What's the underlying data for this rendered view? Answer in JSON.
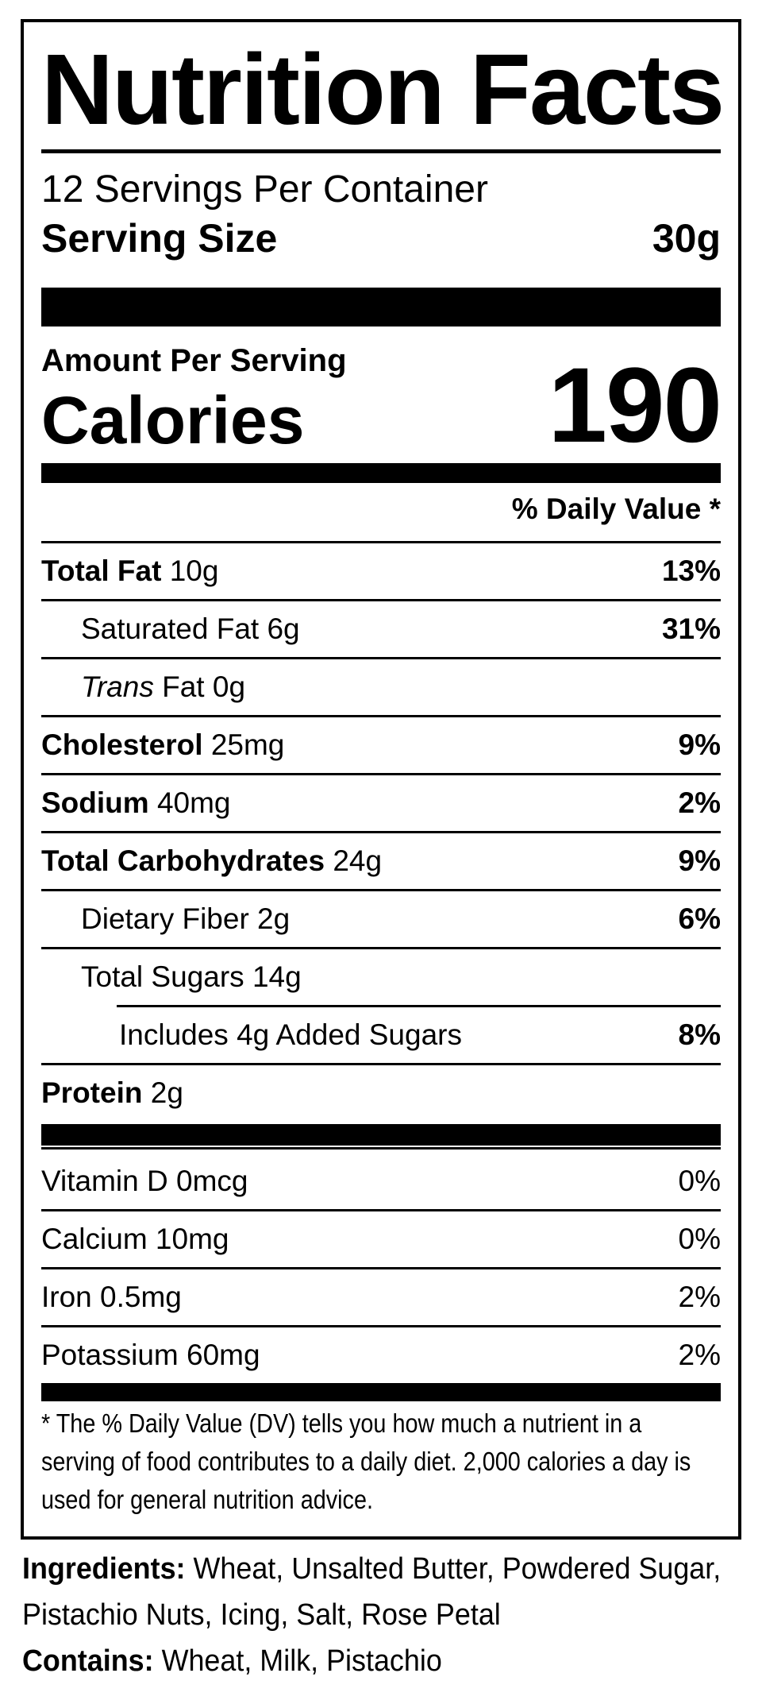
{
  "colors": {
    "text": "#000000",
    "background": "#ffffff"
  },
  "label": {
    "title": "Nutrition Facts",
    "servings_per_container": "12 Servings Per Container",
    "serving_size_label": "Serving Size",
    "serving_size_value": "30g",
    "amount_per_serving": "Amount Per Serving",
    "calories_label": "Calories",
    "calories_value": "190",
    "daily_value_header": "% Daily Value *",
    "rows": [
      {
        "name": "Total Fat",
        "amount": "10g",
        "pct": "13%",
        "indent": 0,
        "bold_name": true,
        "bold_pct": true,
        "rule_indent": 0
      },
      {
        "name": "Saturated Fat",
        "amount": "6g",
        "pct": "31%",
        "indent": 1,
        "bold_name": false,
        "bold_pct": true,
        "rule_indent": 0
      },
      {
        "italic_word": "Trans",
        "name": "Fat",
        "amount": "0g",
        "pct": "",
        "indent": 1,
        "bold_name": false,
        "bold_pct": false,
        "rule_indent": 0
      },
      {
        "name": "Cholesterol",
        "amount": "25mg",
        "pct": "9%",
        "indent": 0,
        "bold_name": true,
        "bold_pct": true,
        "rule_indent": 0
      },
      {
        "name": "Sodium",
        "amount": "40mg",
        "pct": "2%",
        "indent": 0,
        "bold_name": true,
        "bold_pct": true,
        "rule_indent": 0
      },
      {
        "name": "Total Carbohydrates",
        "amount": "24g",
        "pct": "9%",
        "indent": 0,
        "bold_name": true,
        "bold_pct": true,
        "rule_indent": 0
      },
      {
        "name": "Dietary Fiber",
        "amount": "2g",
        "pct": "6%",
        "indent": 1,
        "bold_name": false,
        "bold_pct": true,
        "rule_indent": 0
      },
      {
        "name": "Total Sugars",
        "amount": "14g",
        "pct": "",
        "indent": 1,
        "bold_name": false,
        "bold_pct": false,
        "rule_indent": 0
      },
      {
        "name": "Includes 4g Added Sugars",
        "amount": "",
        "pct": "8%",
        "indent": 2,
        "bold_name": false,
        "bold_pct": true,
        "rule_indent": 95
      },
      {
        "name": "Protein",
        "amount": "2g",
        "pct": "",
        "indent": 0,
        "bold_name": true,
        "bold_pct": false,
        "rule_indent": 0
      }
    ],
    "vitamins": [
      {
        "name": "Vitamin D",
        "amount": "0mcg",
        "pct": "0%"
      },
      {
        "name": "Calcium",
        "amount": "10mg",
        "pct": "0%"
      },
      {
        "name": "Iron",
        "amount": "0.5mg",
        "pct": "2%"
      },
      {
        "name": "Potassium",
        "amount": "60mg",
        "pct": "2%"
      }
    ],
    "footnote": "* The % Daily Value (DV) tells you how much a nutrient in a serving of food contributes to a daily diet. 2,000 calories a day is used for general nutrition advice."
  },
  "ingredients": {
    "label": "Ingredients:",
    "text": "Wheat, Unsalted Butter, Powdered Sugar, Pistachio Nuts, Icing, Salt, Rose Petal"
  },
  "contains": {
    "label": "Contains:",
    "text": "Wheat, Milk, Pistachio"
  }
}
